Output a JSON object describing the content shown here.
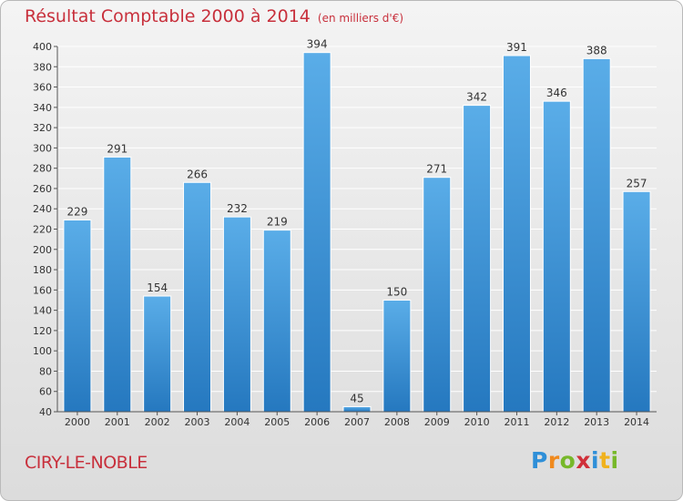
{
  "header": {
    "title": "Résultat Comptable 2000 à 2014",
    "unit": "(en milliers d'€)"
  },
  "footer": {
    "city": "CIRY-LE-NOBLE",
    "logo": "Proxiti"
  },
  "colors": {
    "title": "#c8303c",
    "bar_light": "#5aade8",
    "bar_dark": "#2578bf"
  },
  "chart_data": {
    "type": "bar",
    "title": "Résultat Comptable 2000 à 2014",
    "subtitle": "(en milliers d'€)",
    "xlabel": "",
    "ylabel": "",
    "categories": [
      "2000",
      "2001",
      "2002",
      "2003",
      "2004",
      "2005",
      "2006",
      "2007",
      "2008",
      "2009",
      "2010",
      "2011",
      "2012",
      "2013",
      "2014"
    ],
    "values": [
      229,
      291,
      154,
      266,
      232,
      219,
      394,
      45,
      150,
      271,
      342,
      391,
      346,
      388,
      257
    ],
    "ylim": [
      40,
      400
    ],
    "yticks": [
      40,
      60,
      80,
      100,
      120,
      140,
      160,
      180,
      200,
      220,
      240,
      260,
      280,
      300,
      320,
      340,
      360,
      380,
      400
    ],
    "grid": true,
    "legend": "none"
  }
}
